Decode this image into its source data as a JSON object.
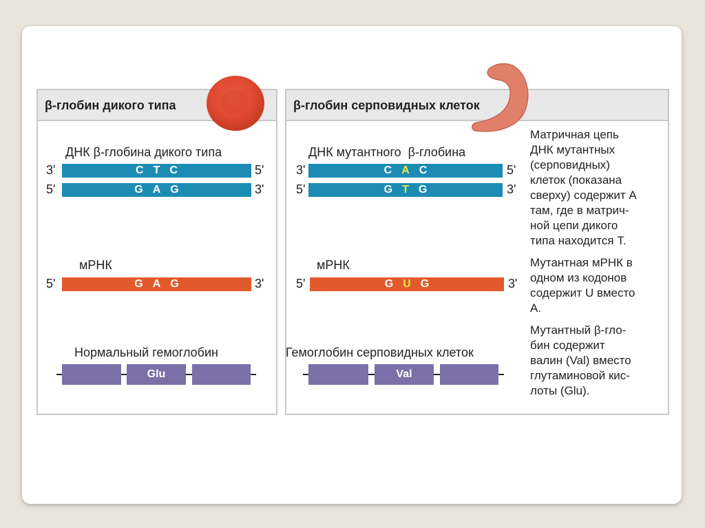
{
  "wild": {
    "title": "β-глобин дикого типа",
    "dna_label": "ДНК β-глобина дикого типа",
    "strand1": {
      "left": "3'",
      "right": "5'",
      "codon": [
        "C",
        "T",
        "C"
      ]
    },
    "strand2": {
      "left": "5'",
      "right": "3'",
      "codon": [
        "G",
        "A",
        "G"
      ]
    },
    "mrna_label": "мРНК",
    "mrna": {
      "left": "5'",
      "right": "3'",
      "codon": [
        "G",
        "A",
        "G"
      ]
    },
    "protein_label": "Нормальный гемоглобин",
    "amino_acid": "Glu"
  },
  "sickle": {
    "title": "β-глобин серповидных клеток",
    "dna_label": "ДНК мутантного  β-глобина",
    "strand1": {
      "left": "3'",
      "right": "5'",
      "codon": [
        "C",
        "A",
        "C"
      ]
    },
    "strand2": {
      "left": "5'",
      "right": "3'",
      "codon": [
        "G",
        "T",
        "G"
      ]
    },
    "mrna_label": "мРНК",
    "mrna": {
      "left": "5'",
      "right": "3'",
      "codon": [
        "G",
        "U",
        "G"
      ]
    },
    "protein_label": "Гемоглобин серповидных клеток",
    "amino_acid": "Val",
    "notes": [
      [
        "Матричная цепь",
        "ДНК мутантных",
        "(серповидных)",
        "клеток (показана",
        "сверху) содержит А",
        "там, где в матрич-",
        "ной цепи дикого",
        "типа находится Т."
      ],
      [
        "Мутантная мРНК в",
        "одном из кодонов",
        "содержит U вместо",
        "А."
      ],
      [
        "Мутантный β-гло-",
        "бин содержит",
        "валин (Val) вместо",
        "глутаминовой кис-",
        "лоты (Glu)."
      ]
    ]
  },
  "colors": {
    "dna": "#1c8cb4",
    "mrna": "#e25a2c",
    "protein": "#7b70a8",
    "highlight": "#e8ee3a"
  }
}
